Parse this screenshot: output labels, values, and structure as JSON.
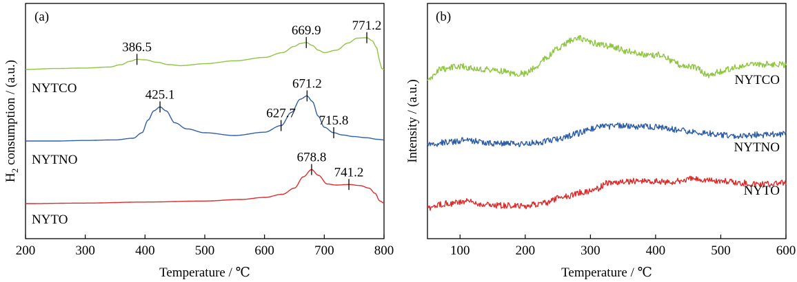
{
  "colors": {
    "NYTCO": "#8dc63f",
    "NYTNO": "#2e5ea8",
    "NYTO": "#e02a2a"
  },
  "chart_data": [
    {
      "type": "line",
      "panel_label": "(a)",
      "xlabel": "Temperature / ℃",
      "ylabel_main": "H",
      "ylabel_sub": "2",
      "ylabel_rest": " consumption / (a.u.)",
      "xlim": [
        200,
        800
      ],
      "xticks": [
        "200",
        "300",
        "400",
        "500",
        "600",
        "700",
        "800"
      ],
      "series": [
        {
          "name": "NYTCO",
          "x": [
            200,
            250,
            300,
            340,
            360,
            375,
            386.5,
            400,
            420,
            440,
            460,
            500,
            550,
            600,
            630,
            650,
            660,
            669.9,
            680,
            690,
            700,
            720,
            740,
            755,
            771.2,
            780,
            788,
            792,
            796,
            800
          ],
          "y": [
            0.0,
            0.02,
            0.03,
            0.05,
            0.1,
            0.17,
            0.21,
            0.2,
            0.15,
            0.1,
            0.08,
            0.12,
            0.18,
            0.25,
            0.35,
            0.48,
            0.54,
            0.56,
            0.5,
            0.4,
            0.35,
            0.4,
            0.55,
            0.65,
            0.66,
            0.6,
            0.45,
            0.2,
            0.02,
            0.0
          ],
          "peaks": [
            {
              "x": 386.5,
              "label": "386.5"
            },
            {
              "x": 669.9,
              "label": "669.9"
            },
            {
              "x": 771.2,
              "label": "771.2"
            }
          ]
        },
        {
          "name": "NYTNO",
          "x": [
            200,
            250,
            300,
            350,
            380,
            395,
            405,
            415,
            425.1,
            435,
            450,
            470,
            500,
            550,
            600,
            627.7,
            645,
            660,
            671.2,
            680,
            690,
            700,
            715.8,
            730,
            750,
            770,
            790,
            800
          ],
          "y": [
            0.0,
            0.0,
            0.01,
            0.02,
            0.05,
            0.15,
            0.38,
            0.55,
            0.62,
            0.55,
            0.33,
            0.22,
            0.15,
            0.1,
            0.16,
            0.28,
            0.52,
            0.76,
            0.82,
            0.72,
            0.45,
            0.25,
            0.15,
            0.11,
            0.08,
            0.06,
            0.03,
            0.02
          ],
          "peaks": [
            {
              "x": 425.1,
              "label": "425.1"
            },
            {
              "x": 627.7,
              "label": "627.7"
            },
            {
              "x": 671.2,
              "label": "671.2"
            },
            {
              "x": 715.8,
              "label": "715.8"
            }
          ]
        },
        {
          "name": "NYTO",
          "x": [
            200,
            300,
            400,
            500,
            560,
            600,
            630,
            650,
            665,
            678.8,
            690,
            705,
            720,
            741.2,
            760,
            775,
            785,
            793,
            800
          ],
          "y": [
            0.0,
            0.01,
            0.03,
            0.05,
            0.08,
            0.12,
            0.18,
            0.3,
            0.52,
            0.66,
            0.55,
            0.38,
            0.36,
            0.37,
            0.35,
            0.3,
            0.2,
            0.05,
            0.01
          ],
          "peaks": [
            {
              "x": 678.8,
              "label": "678.8"
            },
            {
              "x": 741.2,
              "label": "741.2"
            }
          ]
        }
      ]
    },
    {
      "type": "line",
      "panel_label": "(b)",
      "xlabel": "Temperature / ℃",
      "ylabel": "Intensity / (a.u.)",
      "xlim": [
        50,
        600
      ],
      "xticks": [
        "100",
        "200",
        "300",
        "400",
        "500",
        "600"
      ],
      "series": [
        {
          "name": "NYTCO",
          "x": [
            50,
            70,
            100,
            130,
            160,
            180,
            200,
            215,
            230,
            250,
            270,
            285,
            300,
            330,
            360,
            390,
            410,
            425,
            440,
            460,
            480,
            500,
            520,
            550,
            580,
            600
          ],
          "y": [
            0.0,
            0.22,
            0.28,
            0.22,
            0.2,
            0.15,
            0.14,
            0.25,
            0.42,
            0.6,
            0.75,
            0.8,
            0.72,
            0.65,
            0.55,
            0.48,
            0.5,
            0.38,
            0.3,
            0.26,
            0.12,
            0.18,
            0.25,
            0.3,
            0.32,
            0.3
          ]
        },
        {
          "name": "NYTNO",
          "x": [
            50,
            80,
            110,
            140,
            170,
            200,
            220,
            240,
            260,
            280,
            300,
            320,
            350,
            380,
            410,
            440,
            470,
            500,
            530,
            560,
            600
          ],
          "y": [
            0.0,
            0.06,
            0.12,
            0.05,
            0.02,
            0.0,
            0.06,
            0.12,
            0.2,
            0.32,
            0.45,
            0.52,
            0.55,
            0.52,
            0.5,
            0.4,
            0.36,
            0.28,
            0.25,
            0.28,
            0.3
          ]
        },
        {
          "name": "NYTO",
          "x": [
            50,
            80,
            110,
            140,
            170,
            200,
            230,
            260,
            290,
            310,
            325,
            345,
            380,
            420,
            460,
            500,
            530,
            560,
            600
          ],
          "y": [
            0.0,
            0.1,
            0.15,
            0.08,
            0.05,
            0.04,
            0.12,
            0.28,
            0.38,
            0.45,
            0.6,
            0.62,
            0.65,
            0.62,
            0.7,
            0.65,
            0.6,
            0.58,
            0.6
          ]
        }
      ]
    }
  ]
}
